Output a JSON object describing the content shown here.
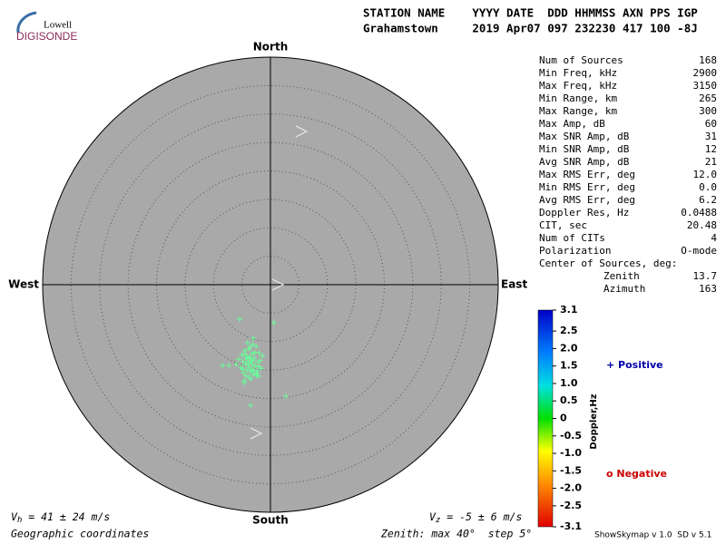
{
  "logo": {
    "top": "Lowell",
    "bottom": "DIGISONDE"
  },
  "header": {
    "line1": "STATION NAME    YYYY DATE  DDD HHMMSS AXN PPS IGP",
    "line2": "Grahamstown     2019 Apr07 097 232230 417 100 -8J"
  },
  "stats": {
    "rows": [
      [
        "Num of Sources",
        "168"
      ],
      [
        "Min Freq, kHz",
        "2900"
      ],
      [
        "Max Freq, kHz",
        "3150"
      ],
      [
        "Min Range, km",
        "265"
      ],
      [
        "Max Range, km",
        "300"
      ],
      [
        "Max Amp, dB",
        "60"
      ],
      [
        "Max SNR Amp, dB",
        "31"
      ],
      [
        "Min SNR Amp, dB",
        "12"
      ],
      [
        "Avg SNR Amp, dB",
        "21"
      ],
      [
        "Max RMS Err, deg",
        "12.0"
      ],
      [
        "Min RMS Err, deg",
        "0.0"
      ],
      [
        "Avg RMS Err, deg",
        "6.2"
      ],
      [
        "Doppler Res, Hz",
        "0.0488"
      ],
      [
        "CIT, sec",
        "20.48"
      ],
      [
        "Num of CITs",
        "4"
      ],
      [
        "Polarization",
        "O-mode"
      ]
    ],
    "center_title": "Center of Sources, deg:",
    "center_rows": [
      [
        "Zenith",
        "13.7"
      ],
      [
        "Azimuth",
        "163"
      ]
    ]
  },
  "colorbar": {
    "label": "Doppler,Hz",
    "lim": [
      -3.1,
      3.1
    ],
    "ticks": [
      3.1,
      2.5,
      {
        "value": 2,
        "label": "2.0"
      },
      1.5,
      {
        "value": 1,
        "label": "1.0"
      },
      0.5,
      0,
      -0.5,
      {
        "value": -1,
        "label": "-1.0"
      },
      -1.5,
      {
        "value": -2,
        "label": "-2.0"
      },
      -2.5,
      -3.1
    ]
  },
  "legend": {
    "positive": "+ Positive",
    "negative": "o Negative"
  },
  "footer": {
    "vh": [
      "V",
      "h",
      " = 41 ± 24 m/s"
    ],
    "vz": [
      "V",
      "z",
      " = -5 ± 6 m/s"
    ],
    "coords": "Geographic coordinates",
    "zenith": "Zenith: max 40°  step 5°",
    "version": "ShowSkymap v 1.0  SD v 5.1"
  },
  "chart_data": {
    "type": "scatter",
    "marker": "+",
    "color": "#66ff99",
    "directions": {
      "north": "North",
      "south": "South",
      "east": "East",
      "west": "West"
    },
    "xlim": [
      -40,
      40
    ],
    "ylim": [
      -40,
      40
    ],
    "ring_step": 5,
    "x": [
      -5.4,
      0.6,
      -8.4,
      -7.3,
      2.7,
      -3.5,
      -4.6,
      -3.0,
      -4.0,
      -2.5,
      -3.8,
      -4.5,
      -2.0,
      -3.2,
      -5.0,
      -3.6,
      -2.8,
      -4.2,
      -3.4,
      -1.8,
      -4.8,
      -2.2,
      -3.9,
      -3.1,
      -4.4,
      -2.6,
      -3.7,
      -5.2,
      -1.6,
      -3.3,
      -4.1,
      -2.9,
      -3.5,
      -4.7,
      -2.4,
      -3.0,
      -4.3,
      -2.1,
      -3.8,
      -5.6,
      -1.4,
      -3.6,
      -2.7,
      -4.0,
      -3.2,
      -4.9,
      -2.3,
      -3.4,
      -4.6,
      -2.0,
      -3.9,
      -6.0,
      -3.1,
      -2.5,
      -4.4
    ],
    "y": [
      -6.1,
      -6.7,
      -14.2,
      -14.2,
      -19.6,
      -21.2,
      -17.2,
      -9.4,
      -10.2,
      -10.8,
      -11.3,
      -11.6,
      -12.0,
      -12.1,
      -12.4,
      -12.6,
      -12.9,
      -13.0,
      -13.2,
      -13.3,
      -13.5,
      -13.6,
      -13.8,
      -14.0,
      -14.1,
      -14.3,
      -14.5,
      -14.6,
      -14.7,
      -14.9,
      -15.0,
      -15.1,
      -15.3,
      -15.5,
      -15.6,
      -15.8,
      -16.0,
      -16.1,
      -16.3,
      -13.1,
      -12.5,
      -11.0,
      -11.9,
      -12.8,
      -13.4,
      -14.8,
      -15.2,
      -16.6,
      -16.9,
      -14.4,
      -13.7,
      -14.0,
      -10.5,
      -15.9,
      -12.2
    ]
  }
}
